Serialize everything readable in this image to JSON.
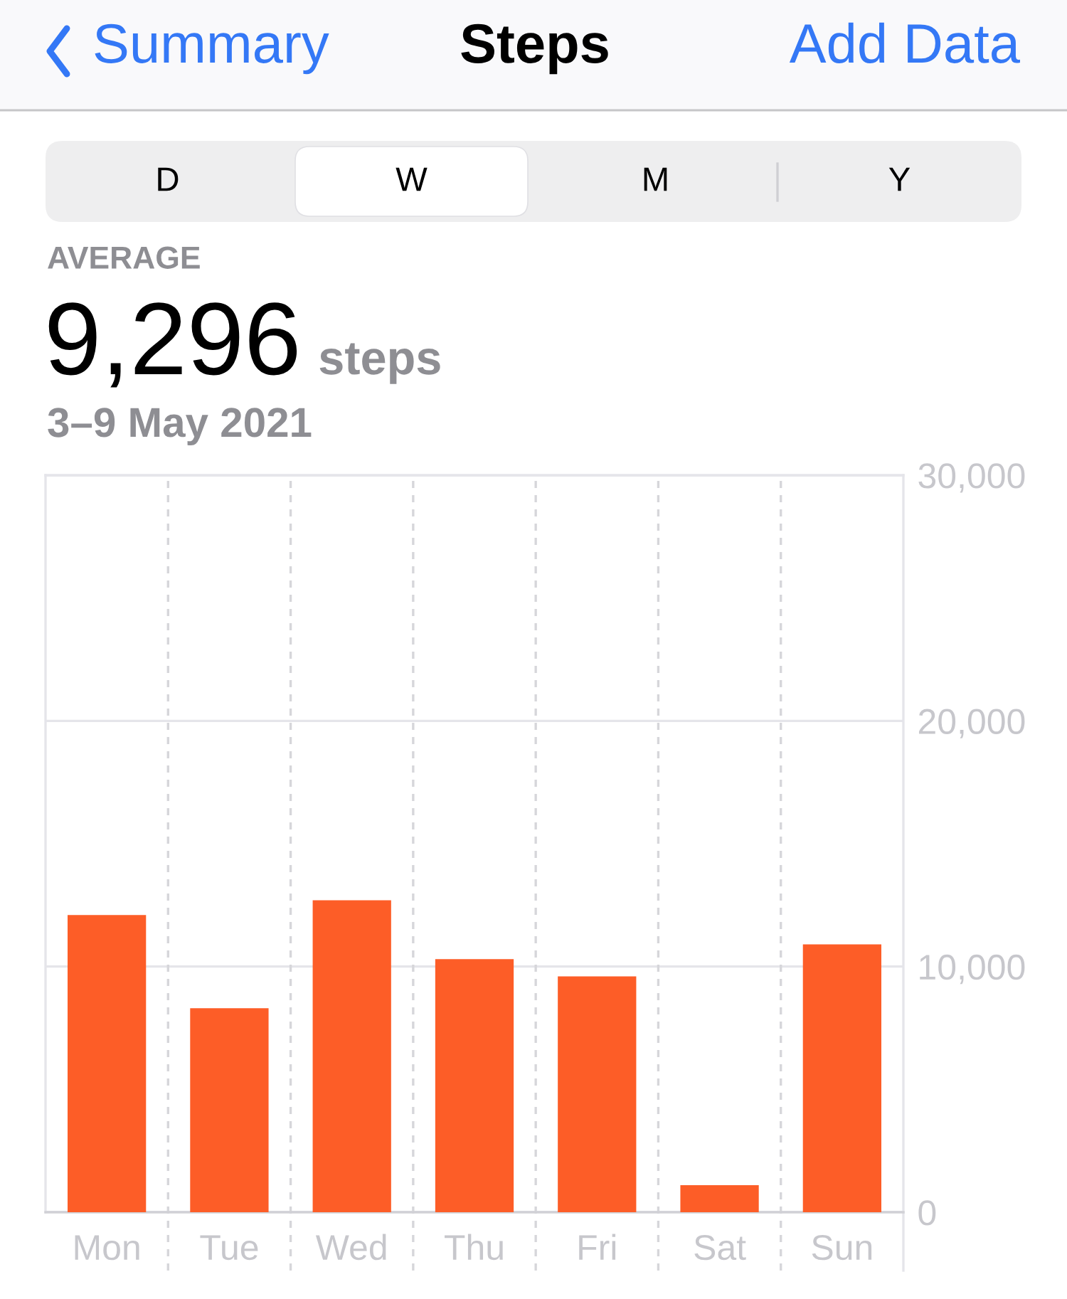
{
  "chart_data": {
    "type": "bar",
    "title": "Steps",
    "subtitle": "3–9 May 2021",
    "annotations": [
      "Summary",
      "Add Data",
      "D",
      "W",
      "M",
      "Y",
      "AVERAGE",
      "9,296",
      "steps"
    ],
    "categories": [
      "Mon",
      "Tue",
      "Wed",
      "Thu",
      "Fri",
      "Sat",
      "Sun"
    ],
    "values": [
      12100,
      8300,
      12700,
      10300,
      9600,
      1100,
      10900
    ],
    "color": "#fd5d27",
    "ylim": [
      0,
      30000
    ],
    "yticks": [
      0,
      {
        "value": 10000,
        "label": "10,000"
      },
      {
        "value": 20000,
        "label": "20,000"
      },
      {
        "value": 30000,
        "label": "30,000"
      }
    ],
    "grid": true
  }
}
